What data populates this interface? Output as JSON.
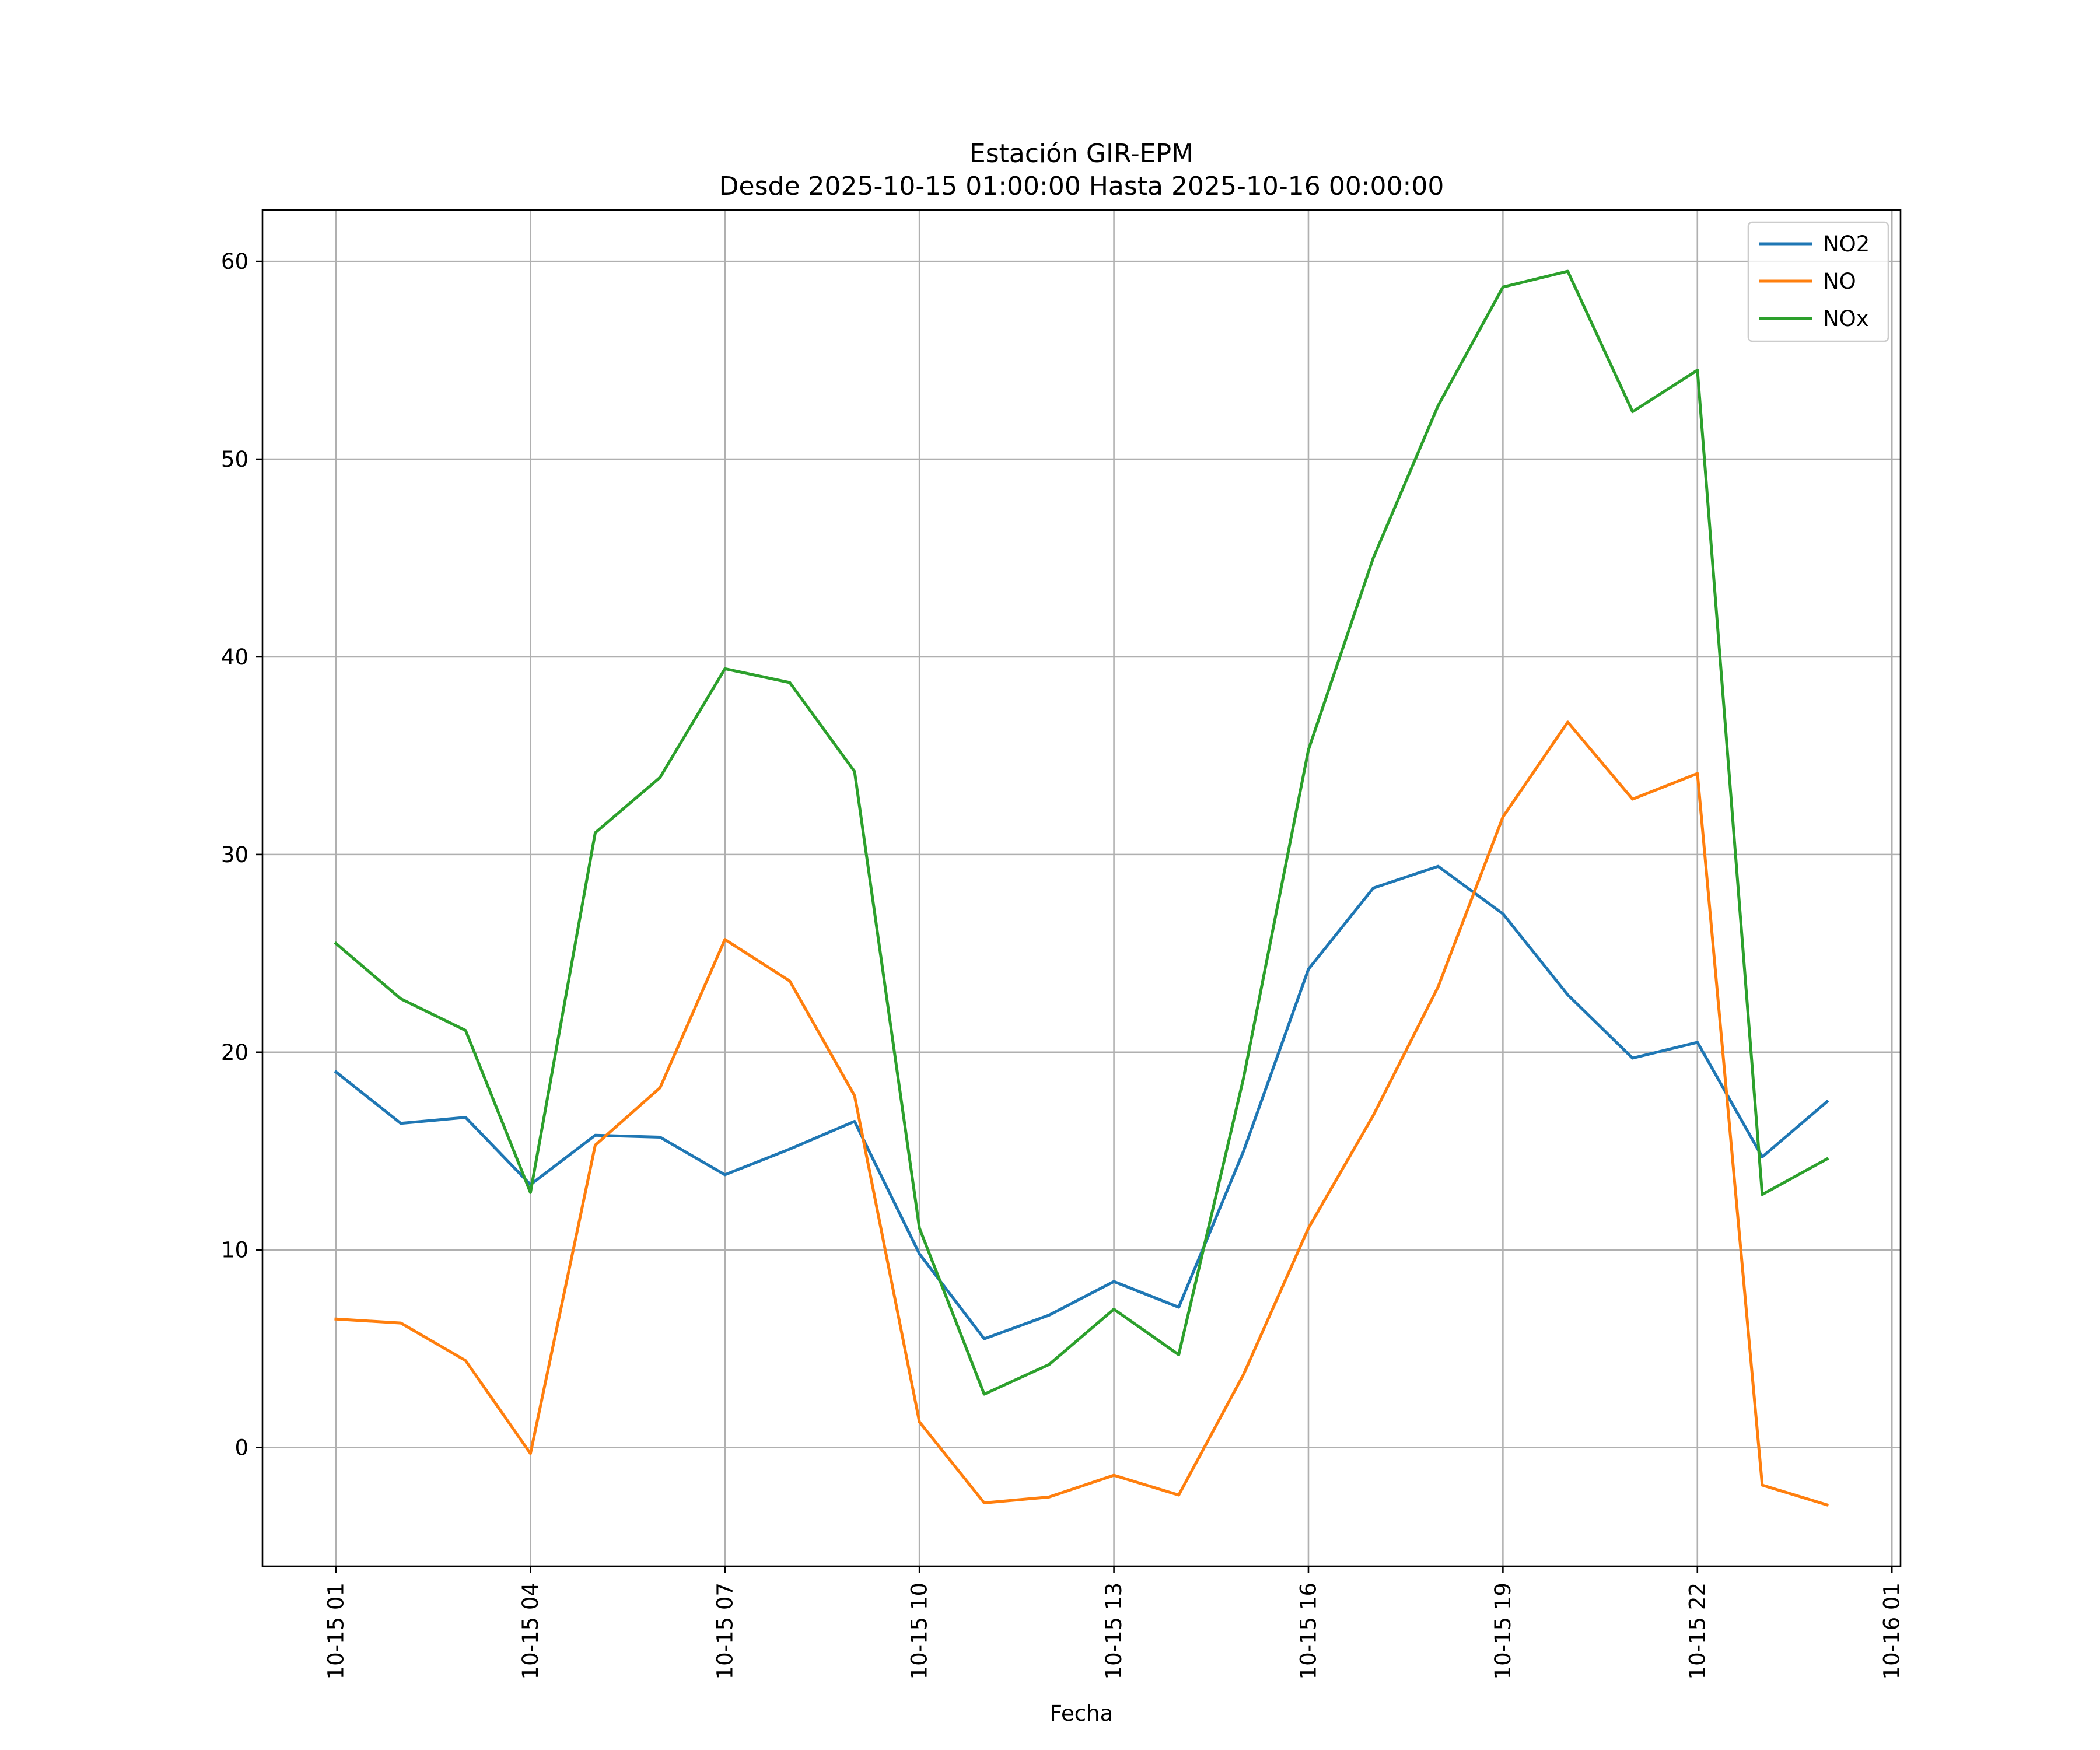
{
  "chart_data": {
    "type": "line",
    "title": "Estación GIR-EPM",
    "subtitle": "Desde 2025-10-15 01:00:00 Hasta 2025-10-16 00:00:00",
    "xlabel": "Fecha",
    "ylabel": "",
    "x": [
      "2025-10-15 01:00",
      "2025-10-15 02:00",
      "2025-10-15 03:00",
      "2025-10-15 04:00",
      "2025-10-15 05:00",
      "2025-10-15 06:00",
      "2025-10-15 07:00",
      "2025-10-15 08:00",
      "2025-10-15 09:00",
      "2025-10-15 10:00",
      "2025-10-15 11:00",
      "2025-10-15 12:00",
      "2025-10-15 13:00",
      "2025-10-15 14:00",
      "2025-10-15 15:00",
      "2025-10-15 16:00",
      "2025-10-15 17:00",
      "2025-10-15 18:00",
      "2025-10-15 19:00",
      "2025-10-15 20:00",
      "2025-10-15 21:00",
      "2025-10-15 22:00",
      "2025-10-15 23:00",
      "2025-10-16 00:00"
    ],
    "xlim": [
      "2025-10-14 23:52",
      "2025-10-16 01:08"
    ],
    "ylim": [
      -6,
      62.6
    ],
    "x_ticks": [
      {
        "value": "2025-10-15 01:00",
        "label": "10-15 01"
      },
      {
        "value": "2025-10-15 04:00",
        "label": "10-15 04"
      },
      {
        "value": "2025-10-15 07:00",
        "label": "10-15 07"
      },
      {
        "value": "2025-10-15 10:00",
        "label": "10-15 10"
      },
      {
        "value": "2025-10-15 13:00",
        "label": "10-15 13"
      },
      {
        "value": "2025-10-15 16:00",
        "label": "10-15 16"
      },
      {
        "value": "2025-10-15 19:00",
        "label": "10-15 19"
      },
      {
        "value": "2025-10-15 22:00",
        "label": "10-15 22"
      },
      {
        "value": "2025-10-16 01:00",
        "label": "10-16 01"
      }
    ],
    "y_ticks": [
      {
        "value": 0,
        "label": "0"
      },
      {
        "value": 10,
        "label": "10"
      },
      {
        "value": 20,
        "label": "20"
      },
      {
        "value": 30,
        "label": "30"
      },
      {
        "value": 40,
        "label": "40"
      },
      {
        "value": 50,
        "label": "50"
      },
      {
        "value": 60,
        "label": "60"
      }
    ],
    "grid": true,
    "legend_position": "top-right",
    "series": [
      {
        "name": "NO2",
        "color": "#1f77b4",
        "values": [
          19.0,
          16.4,
          16.7,
          13.3,
          15.8,
          15.7,
          13.8,
          15.1,
          16.5,
          9.8,
          5.5,
          6.7,
          8.4,
          7.1,
          15.0,
          24.2,
          28.3,
          29.4,
          27.0,
          22.9,
          19.7,
          20.5,
          14.7,
          17.5
        ]
      },
      {
        "name": "NO",
        "color": "#ff7f0e",
        "values": [
          6.5,
          6.3,
          4.4,
          -0.3,
          15.3,
          18.2,
          25.7,
          23.6,
          17.8,
          1.3,
          -2.8,
          -2.5,
          -1.4,
          -2.4,
          3.7,
          11.1,
          16.8,
          23.3,
          31.9,
          36.7,
          32.8,
          34.1,
          -1.9,
          -2.9
        ]
      },
      {
        "name": "NOx",
        "color": "#2ca02c",
        "values": [
          25.5,
          22.7,
          21.1,
          12.9,
          31.1,
          33.9,
          39.4,
          38.7,
          34.2,
          11.1,
          2.7,
          4.2,
          7.0,
          4.7,
          18.7,
          35.3,
          45.0,
          52.7,
          58.7,
          59.5,
          52.4,
          54.5,
          12.8,
          14.6
        ]
      }
    ]
  }
}
